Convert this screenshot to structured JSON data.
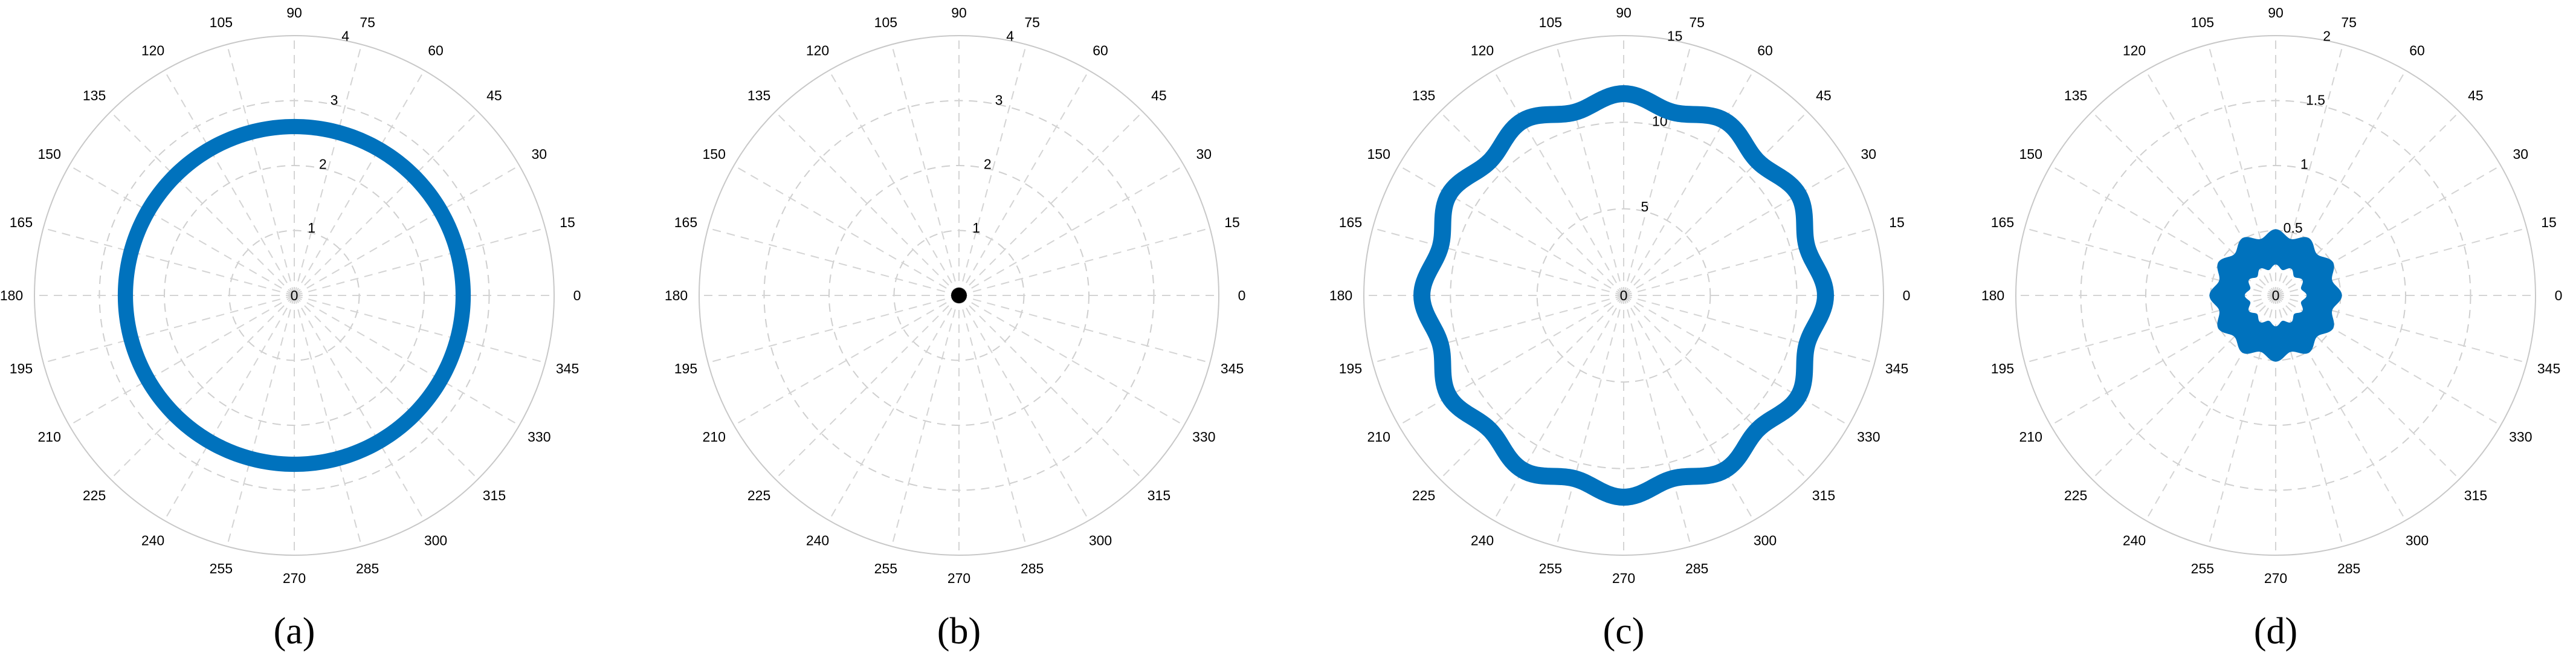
{
  "chart_data": [
    {
      "type": "polar",
      "panel_label": "(a)",
      "theta_ticks": [
        "0",
        "15",
        "30",
        "45",
        "60",
        "75",
        "90",
        "105",
        "120",
        "135",
        "150",
        "165",
        "180",
        "195",
        "210",
        "225",
        "240",
        "255",
        "270",
        "285",
        "300",
        "315",
        "330",
        "345"
      ],
      "r_ticks": [
        "0",
        "1",
        "2",
        "3",
        "4"
      ],
      "rlim": [
        0,
        4
      ],
      "grid": true,
      "series": [
        {
          "shape": "ring",
          "r": 2.6,
          "r_min": 2.52,
          "r_max": 2.68,
          "color": "#0072BD"
        }
      ]
    },
    {
      "type": "polar",
      "panel_label": "(b)",
      "theta_ticks": [
        "0",
        "15",
        "30",
        "45",
        "60",
        "75",
        "90",
        "105",
        "120",
        "135",
        "150",
        "165",
        "180",
        "195",
        "210",
        "225",
        "240",
        "255",
        "270",
        "285",
        "300",
        "315",
        "330",
        "345"
      ],
      "r_ticks": [
        "0",
        "1",
        "2",
        "3",
        "4"
      ],
      "rlim": [
        0,
        4
      ],
      "grid": true,
      "series": [
        {
          "shape": "point",
          "r": 0,
          "color": "#000000"
        }
      ]
    },
    {
      "type": "polar",
      "panel_label": "(c)",
      "theta_ticks": [
        "0",
        "15",
        "30",
        "45",
        "60",
        "75",
        "90",
        "105",
        "120",
        "135",
        "150",
        "165",
        "180",
        "195",
        "210",
        "225",
        "240",
        "255",
        "270",
        "285",
        "300",
        "315",
        "330",
        "345"
      ],
      "r_ticks": [
        "0",
        "5",
        "10",
        "15"
      ],
      "rlim": [
        0,
        15
      ],
      "grid": true,
      "series": [
        {
          "shape": "ring",
          "r": 11.3,
          "ripple": 0.35,
          "lobes": 12,
          "r_min": 10.95,
          "r_max": 11.65,
          "color": "#0072BD"
        }
      ]
    },
    {
      "type": "polar",
      "panel_label": "(d)",
      "theta_ticks": [
        "0",
        "15",
        "30",
        "45",
        "60",
        "75",
        "90",
        "105",
        "120",
        "135",
        "150",
        "165",
        "180",
        "195",
        "210",
        "225",
        "240",
        "255",
        "270",
        "285",
        "300",
        "315",
        "330",
        "345"
      ],
      "r_ticks": [
        "0",
        "0.5",
        "1",
        "1.5",
        "2"
      ],
      "rlim": [
        0,
        2
      ],
      "grid": true,
      "series": [
        {
          "shape": "band",
          "r_min": 0.22,
          "r_max": 0.48,
          "ripple": 0.03,
          "lobes": 12,
          "color": "#0072BD"
        }
      ]
    }
  ]
}
